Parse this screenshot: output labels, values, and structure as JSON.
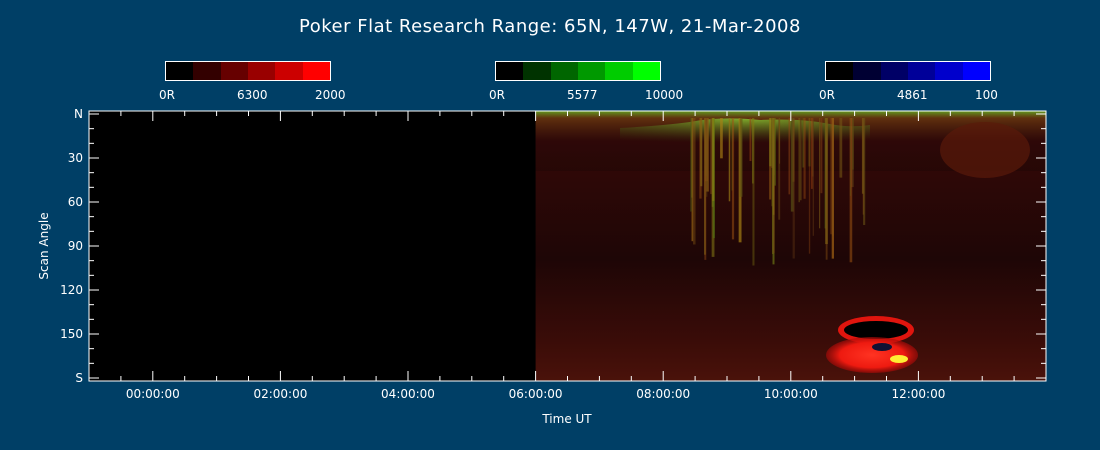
{
  "chart_data": {
    "type": "heatmap",
    "title": "Poker Flat Research Range: 65N, 147W, 21-Mar-2008",
    "xlabel": "Time UT",
    "ylabel": "Scan Angle",
    "x_ticks": [
      "00:00:00",
      "02:00:00",
      "04:00:00",
      "06:00:00",
      "08:00:00",
      "10:00:00",
      "12:00:00"
    ],
    "x_range_hours": [
      -1.0,
      14.0
    ],
    "y_ticks": [
      "N",
      "30",
      "60",
      "90",
      "120",
      "150",
      "S"
    ],
    "y_tick_values": [
      0,
      30,
      60,
      90,
      120,
      150,
      180
    ],
    "y_range": [
      0,
      180
    ],
    "data_start_hours": 6.0,
    "colorbars": [
      {
        "name": "6300",
        "min_label": "0R",
        "mid_label": "6300",
        "max_label": "2000",
        "colors": [
          "#000000",
          "#330000",
          "#660000",
          "#990000",
          "#cc0000",
          "#ff0000"
        ]
      },
      {
        "name": "5577",
        "min_label": "0R",
        "mid_label": "5577",
        "max_label": "10000",
        "colors": [
          "#000000",
          "#003300",
          "#006600",
          "#009900",
          "#00cc00",
          "#00ff00"
        ]
      },
      {
        "name": "4861",
        "min_label": "0R",
        "mid_label": "4861",
        "max_label": "100",
        "colors": [
          "#000000",
          "#000033",
          "#000066",
          "#000099",
          "#0000cc",
          "#0000ff"
        ]
      }
    ],
    "grid": false
  }
}
